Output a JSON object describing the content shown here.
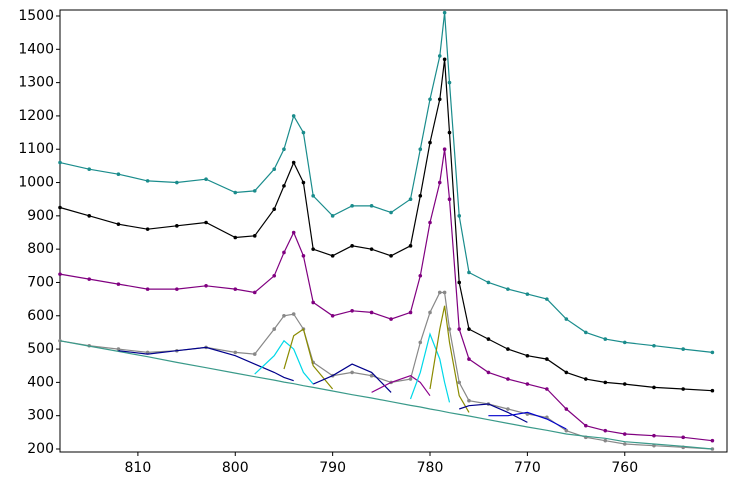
{
  "chart_data": {
    "type": "line",
    "x": [
      818,
      815,
      812,
      809,
      806,
      803,
      800,
      798,
      796,
      795,
      794,
      793,
      792,
      790,
      788,
      786,
      784,
      782,
      781,
      780,
      779,
      778.5,
      778,
      777,
      776,
      774,
      772,
      770,
      768,
      766,
      764,
      762,
      760,
      757,
      754,
      751
    ],
    "xlim": [
      818,
      749.5
    ],
    "xticks": [
      810,
      800,
      790,
      780,
      770,
      760
    ],
    "ylim": [
      191,
      1518
    ],
    "yticks": [
      200,
      300,
      400,
      500,
      600,
      700,
      800,
      900,
      1000,
      1100,
      1200,
      1300,
      1400,
      1500
    ],
    "series": [
      {
        "color": "#1a8c8c",
        "markers": true,
        "values": [
          1060,
          1040,
          1025,
          1005,
          1000,
          1010,
          970,
          975,
          1040,
          1100,
          1200,
          1150,
          960,
          900,
          930,
          930,
          910,
          950,
          1100,
          1250,
          1380,
          1510,
          1300,
          900,
          730,
          700,
          680,
          665,
          650,
          590,
          550,
          530,
          520,
          510,
          500,
          490
        ]
      },
      {
        "color": "#000000",
        "markers": true,
        "values": [
          925,
          900,
          875,
          860,
          870,
          880,
          835,
          840,
          920,
          990,
          1060,
          1000,
          800,
          780,
          810,
          800,
          780,
          810,
          960,
          1120,
          1250,
          1370,
          1150,
          700,
          560,
          530,
          500,
          480,
          470,
          430,
          410,
          400,
          395,
          385,
          380,
          375
        ]
      },
      {
        "color": "#800080",
        "markers": true,
        "values": [
          725,
          710,
          695,
          680,
          680,
          690,
          680,
          670,
          720,
          790,
          850,
          780,
          640,
          600,
          615,
          610,
          590,
          610,
          720,
          880,
          1000,
          1100,
          950,
          560,
          470,
          430,
          410,
          395,
          380,
          320,
          270,
          255,
          245,
          240,
          235,
          225
        ]
      },
      {
        "color": "#888888",
        "markers": true,
        "values": [
          525,
          510,
          500,
          490,
          495,
          505,
          490,
          485,
          560,
          600,
          605,
          560,
          460,
          420,
          430,
          420,
          400,
          410,
          520,
          610,
          670,
          670,
          560,
          400,
          345,
          335,
          320,
          305,
          295,
          255,
          235,
          225,
          215,
          210,
          205,
          200
        ]
      },
      {
        "color": "#3a9a8a",
        "markers": false,
        "values": [
          525,
          509,
          493,
          477,
          460,
          444,
          428,
          417,
          407,
          401,
          396,
          390,
          385,
          374,
          363,
          353,
          342,
          331,
          326,
          320,
          315,
          312,
          309,
          304,
          299,
          288,
          277,
          266,
          256,
          245,
          238,
          232,
          222,
          215,
          208,
          200
        ]
      },
      {
        "color": "#00008b",
        "markers": false,
        "values": [
          null,
          null,
          495,
          485,
          495,
          505,
          480,
          455,
          430,
          415,
          405,
          null,
          null,
          null,
          null,
          null,
          null,
          null,
          null,
          null,
          null,
          null,
          null,
          null,
          null,
          null,
          null,
          null,
          null,
          null,
          null,
          null,
          null,
          null,
          null,
          null
        ]
      },
      {
        "color": "#00d8e8",
        "markers": false,
        "values": [
          null,
          null,
          null,
          null,
          null,
          null,
          null,
          425,
          480,
          525,
          500,
          430,
          395,
          null,
          null,
          null,
          null,
          null,
          null,
          null,
          null,
          null,
          null,
          null,
          null,
          null,
          null,
          null,
          null,
          null,
          null,
          null,
          null,
          null,
          null,
          null
        ]
      },
      {
        "color": "#8b8b00",
        "markers": false,
        "values": [
          null,
          null,
          null,
          null,
          null,
          null,
          null,
          null,
          null,
          440,
          540,
          560,
          450,
          380,
          null,
          null,
          null,
          null,
          null,
          null,
          null,
          null,
          null,
          null,
          null,
          null,
          null,
          null,
          null,
          null,
          null,
          null,
          null,
          null,
          null,
          null
        ]
      },
      {
        "color": "#00008b",
        "markers": false,
        "values": [
          null,
          null,
          null,
          null,
          null,
          null,
          null,
          null,
          null,
          null,
          null,
          null,
          395,
          420,
          455,
          430,
          370,
          null,
          null,
          null,
          null,
          null,
          null,
          null,
          null,
          null,
          null,
          null,
          null,
          null,
          null,
          null,
          null,
          null,
          null,
          null
        ]
      },
      {
        "color": "#8b008b",
        "markers": false,
        "values": [
          null,
          null,
          null,
          null,
          null,
          null,
          null,
          null,
          null,
          null,
          null,
          null,
          null,
          null,
          null,
          370,
          400,
          420,
          400,
          360,
          null,
          null,
          null,
          null,
          null,
          null,
          null,
          null,
          null,
          null,
          null,
          null,
          null,
          null,
          null,
          null
        ]
      },
      {
        "color": "#00d8e8",
        "markers": false,
        "values": [
          null,
          null,
          null,
          null,
          null,
          null,
          null,
          null,
          null,
          null,
          null,
          null,
          null,
          null,
          null,
          null,
          null,
          350,
          430,
          545,
          470,
          400,
          340,
          null,
          null,
          null,
          null,
          null,
          null,
          null,
          null,
          null,
          null,
          null,
          null,
          null
        ]
      },
      {
        "color": "#8b8b00",
        "markers": false,
        "values": [
          null,
          null,
          null,
          null,
          null,
          null,
          null,
          null,
          null,
          null,
          null,
          null,
          null,
          null,
          null,
          null,
          null,
          null,
          null,
          380,
          560,
          630,
          520,
          360,
          310,
          null,
          null,
          null,
          null,
          null,
          null,
          null,
          null,
          null,
          null,
          null
        ]
      },
      {
        "color": "#00008b",
        "markers": false,
        "values": [
          null,
          null,
          null,
          null,
          null,
          null,
          null,
          null,
          null,
          null,
          null,
          null,
          null,
          null,
          null,
          null,
          null,
          null,
          null,
          null,
          null,
          null,
          null,
          320,
          330,
          335,
          310,
          280,
          null,
          null,
          null,
          null,
          null,
          null,
          null,
          null
        ]
      },
      {
        "color": "#0000cd",
        "markers": false,
        "values": [
          null,
          null,
          null,
          null,
          null,
          null,
          null,
          null,
          null,
          null,
          null,
          null,
          null,
          null,
          null,
          null,
          null,
          null,
          null,
          null,
          null,
          null,
          null,
          null,
          null,
          300,
          300,
          310,
          290,
          260,
          null,
          null,
          null,
          null,
          null,
          null
        ]
      }
    ]
  }
}
